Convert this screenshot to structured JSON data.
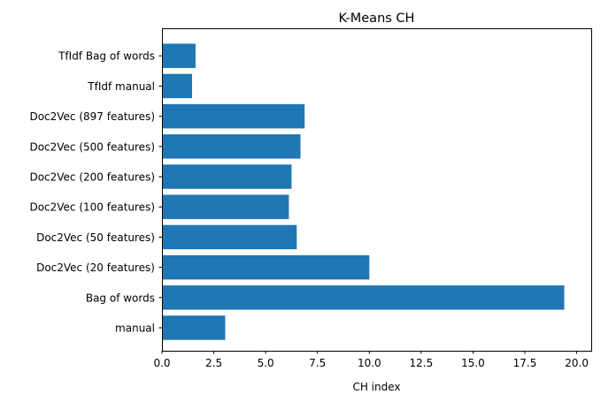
{
  "chart_data": {
    "type": "bar",
    "orientation": "horizontal",
    "title": "K-Means CH",
    "xlabel": "CH index",
    "ylabel": "",
    "categories": [
      "manual",
      "Bag of words",
      "Doc2Vec (20 features)",
      "Doc2Vec (50 features)",
      "Doc2Vec (100 features)",
      "Doc2Vec (200 features)",
      "Doc2Vec (500 features)",
      "Doc2Vec (897 features)",
      "TfIdf manual",
      "TfIdf Bag of words"
    ],
    "values": [
      3.05,
      19.4,
      10.0,
      6.5,
      6.12,
      6.25,
      6.68,
      6.88,
      1.45,
      1.62
    ],
    "xlim": [
      0,
      20.7
    ],
    "xticks": [
      "0.0",
      "2.5",
      "5.0",
      "7.5",
      "10.0",
      "12.5",
      "15.0",
      "17.5",
      "20.0"
    ],
    "grid": false,
    "colors": {
      "bar": "#1f77b4",
      "axis": "#000000",
      "background": "#ffffff"
    }
  }
}
